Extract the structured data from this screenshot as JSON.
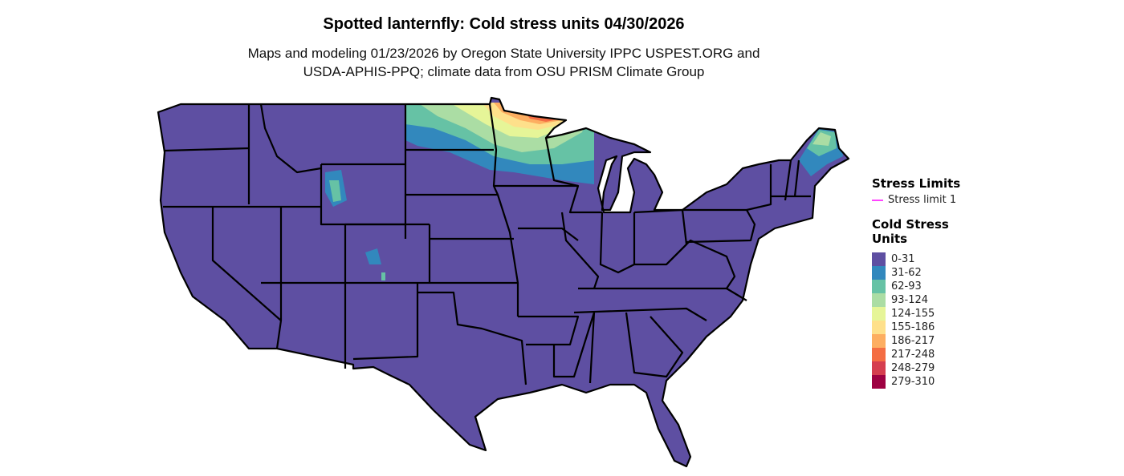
{
  "title": "Spotted lanternfly: Cold stress units 04/30/2026",
  "subtitle_line1": "Maps and modeling 01/23/2026 by Oregon State University IPPC USPEST.ORG and",
  "subtitle_line2": "USDA-APHIS-PPQ; climate data from OSU PRISM Climate Group",
  "legend": {
    "stress_limits_title": "Stress Limits",
    "stress_limit_label": "Stress limit 1",
    "stress_limit_color": "#FF44FF",
    "units_title_line1": "Cold Stress",
    "units_title_line2": "Units",
    "bins": [
      {
        "label": "0-31",
        "color": "#5E4FA2"
      },
      {
        "label": "31-62",
        "color": "#3288BD"
      },
      {
        "label": "62-93",
        "color": "#66C2A5"
      },
      {
        "label": "93-124",
        "color": "#ABDDA4"
      },
      {
        "label": "124-155",
        "color": "#E6F598"
      },
      {
        "label": "155-186",
        "color": "#FEE08B"
      },
      {
        "label": "186-217",
        "color": "#FDAE61"
      },
      {
        "label": "217-248",
        "color": "#F46D43"
      },
      {
        "label": "248-279",
        "color": "#D53E4F"
      },
      {
        "label": "279-310",
        "color": "#9E0142"
      }
    ]
  }
}
